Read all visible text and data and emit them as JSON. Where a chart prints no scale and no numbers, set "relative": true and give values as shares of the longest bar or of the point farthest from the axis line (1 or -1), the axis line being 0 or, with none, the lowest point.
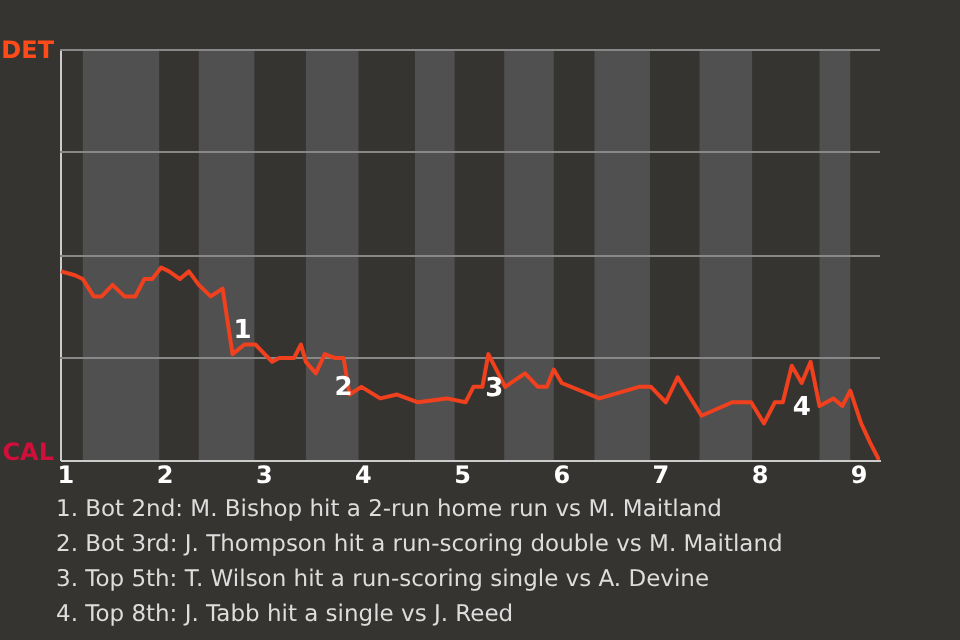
{
  "chart_data": {
    "type": "line",
    "relative": true,
    "x": [
      0.96,
      1.1,
      1.18,
      1.29,
      1.37,
      1.48,
      1.6,
      1.71,
      1.8,
      1.88,
      1.97,
      2.05,
      2.16,
      2.25,
      2.35,
      2.47,
      2.59,
      2.69,
      2.81,
      2.92,
      3.09,
      3.16,
      3.31,
      3.38,
      3.43,
      3.53,
      3.62,
      3.72,
      3.81,
      3.87,
      3.99,
      4.18,
      4.35,
      4.56,
      4.85,
      5.04,
      5.12,
      5.21,
      5.27,
      5.44,
      5.64,
      5.77,
      5.86,
      5.93,
      6.01,
      6.39,
      6.79,
      6.91,
      7.06,
      7.18,
      7.42,
      7.73,
      7.92,
      8.05,
      8.16,
      8.24,
      8.33,
      8.43,
      8.52,
      8.61,
      8.75,
      8.84,
      8.92,
      9.03,
      9.12,
      9.21
    ],
    "series": [
      {
        "color": "#f0401e",
        "values": [
          0.98,
          0.96,
          0.94,
          0.85,
          0.85,
          0.91,
          0.85,
          0.85,
          0.94,
          0.94,
          1.0,
          0.98,
          0.94,
          0.98,
          0.91,
          0.85,
          0.89,
          0.55,
          0.6,
          0.6,
          0.51,
          0.53,
          0.53,
          0.6,
          0.51,
          0.45,
          0.55,
          0.53,
          0.53,
          0.34,
          0.38,
          0.32,
          0.34,
          0.3,
          0.32,
          0.3,
          0.38,
          0.38,
          0.55,
          0.38,
          0.45,
          0.38,
          0.38,
          0.47,
          0.4,
          0.32,
          0.38,
          0.38,
          0.3,
          0.43,
          0.23,
          0.3,
          0.3,
          0.19,
          0.3,
          0.3,
          0.49,
          0.4,
          0.51,
          0.28,
          0.32,
          0.28,
          0.36,
          0.19,
          0.09,
          0.0
        ]
      }
    ],
    "xlim": [
      0.95,
      9.22
    ],
    "xticks": [
      1,
      2,
      3,
      4,
      5,
      6,
      7,
      8,
      9
    ],
    "ref_lines": [
      {
        "axis": "y",
        "value": 0.53,
        "color": "#888888"
      },
      {
        "axis": "y",
        "value": 1.06,
        "color": "#888888"
      },
      {
        "axis": "y",
        "value": 1.6,
        "color": "#888888"
      },
      {
        "axis": "y",
        "value": 2.13,
        "color": "#888888"
      }
    ],
    "bands": [
      {
        "axis": "x",
        "from": 1.18,
        "to": 1.95,
        "color": "#505050"
      },
      {
        "axis": "x",
        "from": 2.35,
        "to": 2.91,
        "color": "#505050"
      },
      {
        "axis": "x",
        "from": 3.43,
        "to": 3.96,
        "color": "#505050"
      },
      {
        "axis": "x",
        "from": 4.53,
        "to": 4.93,
        "color": "#505050"
      },
      {
        "axis": "x",
        "from": 5.43,
        "to": 5.93,
        "color": "#505050"
      },
      {
        "axis": "x",
        "from": 6.34,
        "to": 6.9,
        "color": "#505050"
      },
      {
        "axis": "x",
        "from": 7.4,
        "to": 7.93,
        "color": "#505050"
      },
      {
        "axis": "x",
        "from": 8.61,
        "to": 8.92,
        "color": "#505050"
      }
    ],
    "annotations": [
      {
        "text": "1",
        "x": 2.69,
        "y": 0.55
      },
      {
        "text": "2",
        "x": 3.99,
        "y": 0.38
      },
      {
        "text": "3",
        "x": 5.27,
        "y": 0.55
      },
      {
        "text": "4",
        "x": 8.43,
        "y": 0.4
      },
      "DET",
      "CAL",
      "1. Bot 2nd: M. Bishop hit a 2-run home run vs M. Maitland",
      "2. Bot 3rd: J. Thompson hit a run-scoring double vs M. Maitland",
      "3. Top 5th: T. Wilson hit a run-scoring single vs A. Devine",
      "4. Top 8th: J. Tabb hit a single vs J. Reed"
    ]
  }
}
